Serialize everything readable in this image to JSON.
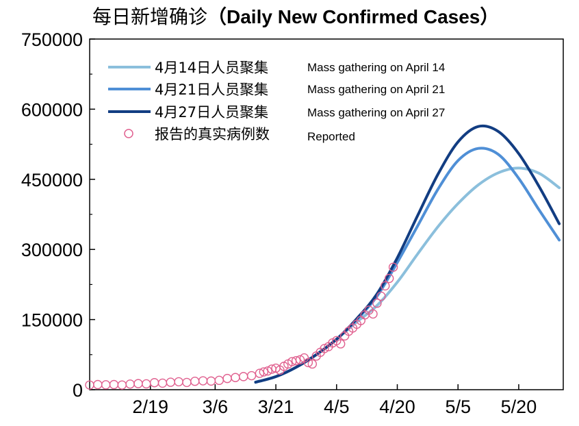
{
  "chart_data": {
    "type": "line",
    "title_cn": "每日新增确诊",
    "title_en": "（Daily New Confirmed Cases）",
    "xlabel": "",
    "ylabel": "",
    "x_ticks": [
      {
        "label": "2/19",
        "day": 49
      },
      {
        "label": "3/6",
        "day": 65
      },
      {
        "label": "3/21",
        "day": 80
      },
      {
        "label": "4/5",
        "day": 95
      },
      {
        "label": "4/20",
        "day": 110
      },
      {
        "label": "5/5",
        "day": 125
      },
      {
        "label": "5/20",
        "day": 140
      }
    ],
    "y_ticks": [
      0,
      150000,
      300000,
      450000,
      600000,
      750000
    ],
    "xlim": [
      "2/3",
      "5/30"
    ],
    "ylim": [
      0,
      750000
    ],
    "grid": false,
    "legend_position": "top-left",
    "series": [
      {
        "name_cn": "4月14日人员聚集",
        "name_en": "Mass gathering on April 14",
        "color": "#8bbfdc",
        "peak": {
          "date": "5/20",
          "value": 475000
        },
        "x": [
          "3/15",
          "3/20",
          "3/25",
          "3/30",
          "4/4",
          "4/9",
          "4/14",
          "4/19",
          "4/24",
          "4/29",
          "5/4",
          "5/9",
          "5/14",
          "5/19",
          "5/24",
          "5/29"
        ],
        "values": [
          16000,
          28000,
          48000,
          75000,
          108000,
          145000,
          180000,
          230000,
          290000,
          348000,
          398000,
          438000,
          464000,
          474000,
          463000,
          432000
        ]
      },
      {
        "name_cn": "4月21日人员聚集",
        "name_en": "Mass gathering on April 21",
        "color": "#4f8fd6",
        "peak": {
          "date": "5/10",
          "value": 517000
        },
        "x": [
          "3/15",
          "3/20",
          "3/25",
          "3/30",
          "4/4",
          "4/9",
          "4/14",
          "4/19",
          "4/24",
          "4/29",
          "5/4",
          "5/9",
          "5/14",
          "5/19",
          "5/24",
          "5/29"
        ],
        "values": [
          16000,
          28000,
          48000,
          75000,
          108000,
          150000,
          200000,
          272000,
          350000,
          428000,
          490000,
          516000,
          503000,
          452000,
          385000,
          320000
        ]
      },
      {
        "name_cn": "4月27日人员聚集",
        "name_en": "Mass gathering on April 27",
        "color": "#123d82",
        "peak": {
          "date": "5/10",
          "value": 564000
        },
        "x": [
          "3/15",
          "3/20",
          "3/25",
          "3/30",
          "4/4",
          "4/9",
          "4/14",
          "4/19",
          "4/24",
          "4/29",
          "5/4",
          "5/9",
          "5/14",
          "5/19",
          "5/24",
          "5/29"
        ],
        "values": [
          16000,
          28000,
          48000,
          75000,
          108000,
          152000,
          205000,
          282000,
          372000,
          460000,
          530000,
          563000,
          552000,
          505000,
          435000,
          355000
        ]
      }
    ],
    "reported": {
      "name_cn": "报告的真实病例数",
      "name_en": "Reported",
      "color": "#e0608f",
      "x": [
        "2/3",
        "2/5",
        "2/7",
        "2/9",
        "2/11",
        "2/13",
        "2/15",
        "2/17",
        "2/19",
        "2/21",
        "2/23",
        "2/25",
        "2/27",
        "2/29",
        "3/2",
        "3/4",
        "3/6",
        "3/8",
        "3/10",
        "3/12",
        "3/14",
        "3/16",
        "3/17",
        "3/18",
        "3/19",
        "3/20",
        "3/21",
        "3/22",
        "3/23",
        "3/24",
        "3/25",
        "3/26",
        "3/27",
        "3/28",
        "3/29",
        "3/30",
        "3/31",
        "4/1",
        "4/2",
        "4/3",
        "4/4",
        "4/5",
        "4/6",
        "4/7",
        "4/8",
        "4/9",
        "4/10",
        "4/11",
        "4/12",
        "4/13",
        "4/14",
        "4/15",
        "4/16",
        "4/17"
      ],
      "values": [
        10000,
        11000,
        10500,
        11000,
        10000,
        12000,
        13000,
        12500,
        15000,
        14000,
        16000,
        17000,
        15500,
        18000,
        19000,
        18500,
        20000,
        24000,
        26000,
        28000,
        30000,
        35000,
        38000,
        40000,
        44000,
        46000,
        42000,
        50000,
        55000,
        60000,
        62000,
        64000,
        68000,
        58000,
        55000,
        72000,
        80000,
        88000,
        92000,
        100000,
        105000,
        98000,
        115000,
        125000,
        132000,
        140000,
        148000,
        160000,
        170000,
        162000,
        185000,
        200000,
        222000,
        238000
      ]
    },
    "reported_extra": {
      "x": [
        "4/18"
      ],
      "values": [
        262000
      ]
    }
  }
}
